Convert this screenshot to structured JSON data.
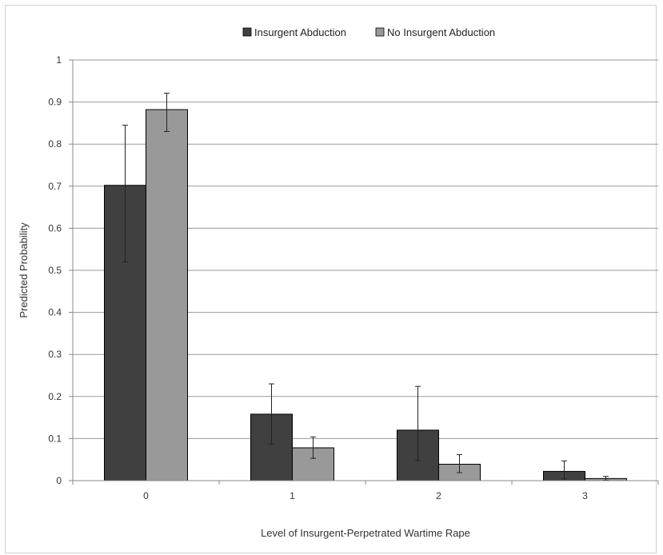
{
  "chart_data": {
    "type": "bar",
    "categories": [
      "0",
      "1",
      "2",
      "3"
    ],
    "series": [
      {
        "name": "Insurgent Abduction",
        "color": "#404040",
        "values": [
          0.702,
          0.158,
          0.12,
          0.022
        ],
        "error_low": [
          0.52,
          0.087,
          0.048,
          0.004
        ],
        "error_high": [
          0.845,
          0.23,
          0.224,
          0.047
        ]
      },
      {
        "name": "No Insurgent Abduction",
        "color": "#999999",
        "values": [
          0.882,
          0.078,
          0.039,
          0.005
        ],
        "error_low": [
          0.83,
          0.053,
          0.019,
          0.001
        ],
        "error_high": [
          0.921,
          0.104,
          0.062,
          0.01
        ]
      }
    ],
    "xlabel": "Level of Insurgent-Perpetrated Wartime Rape",
    "ylabel": "Predicted Probability",
    "ylim": [
      0,
      1
    ],
    "yticks": [
      "0",
      "0.1",
      "0.2",
      "0.3",
      "0.4",
      "0.5",
      "0.6",
      "0.7",
      "0.8",
      "0.9",
      "1"
    ],
    "grid": true,
    "legend_position": "top-center"
  }
}
